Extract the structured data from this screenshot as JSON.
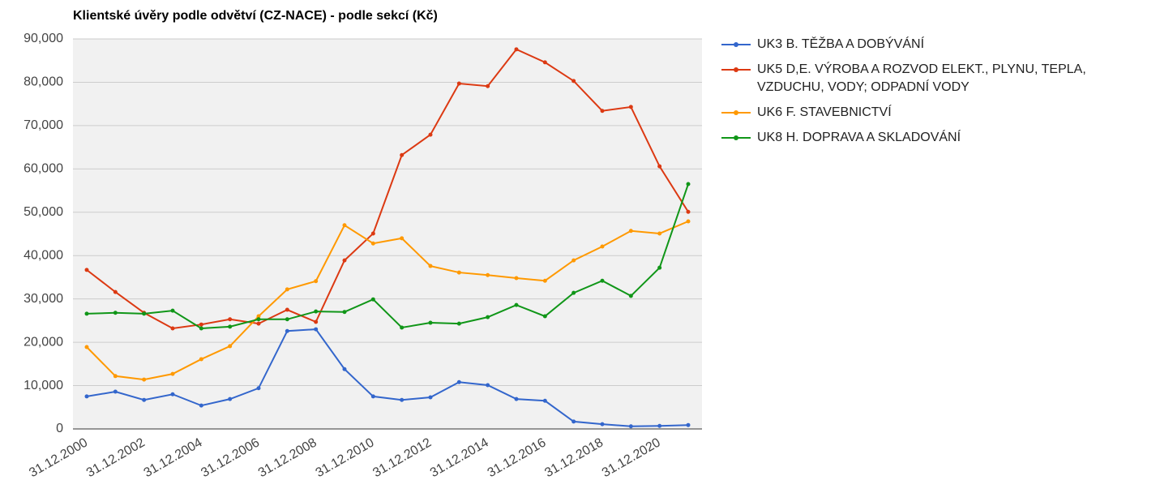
{
  "chart_data": {
    "type": "line",
    "title": "Klientské úvěry podle odvětví (CZ-NACE) - podle sekcí (Kč)",
    "categories": [
      "31.12.2000",
      null,
      "31.12.2002",
      null,
      "31.12.2004",
      null,
      "31.12.2006",
      null,
      "31.12.2008",
      null,
      "31.12.2010",
      null,
      "31.12.2012",
      null,
      "31.12.2014",
      null,
      "31.12.2016",
      null,
      "31.12.2018",
      null,
      "31.12.2020",
      null
    ],
    "series": [
      {
        "name": "UK3 B. TĚŽBA A DOBÝVÁNÍ",
        "color": "#3366cc",
        "values": [
          7500,
          8600,
          6700,
          8000,
          5400,
          6900,
          9400,
          22600,
          23000,
          13800,
          7500,
          6700,
          7300,
          10800,
          10100,
          6900,
          6500,
          1700,
          1100,
          600,
          700,
          900
        ]
      },
      {
        "name": "UK5 D,E. VÝROBA A ROZVOD ELEKT., PLYNU, TEPLA, VZDUCHU, VODY; ODPADNÍ VODY",
        "color": "#dc3912",
        "values": [
          36700,
          31600,
          26800,
          23200,
          24100,
          25300,
          24300,
          27500,
          24700,
          38900,
          45100,
          63200,
          67900,
          79700,
          79100,
          87600,
          84600,
          80300,
          73400,
          74300,
          60600,
          50100
        ]
      },
      {
        "name": "UK6 F. STAVEBNICTVÍ",
        "color": "#ff9900",
        "values": [
          18900,
          12200,
          11400,
          12700,
          16100,
          19100,
          26000,
          32200,
          34100,
          47000,
          42800,
          44000,
          37600,
          36100,
          35500,
          34800,
          34200,
          38900,
          42100,
          45700,
          45100,
          47900
        ]
      },
      {
        "name": "UK8 H. DOPRAVA A SKLADOVÁNÍ",
        "color": "#109618",
        "values": [
          26600,
          26800,
          26600,
          27300,
          23200,
          23600,
          25300,
          25300,
          27100,
          27000,
          29900,
          23400,
          24500,
          24300,
          25800,
          28600,
          26000,
          31400,
          34200,
          30700,
          37200,
          56500
        ]
      }
    ],
    "ylim": [
      0,
      90000
    ],
    "yticks": [
      0,
      {
        "value": 10000,
        "label": "10,000"
      },
      {
        "value": 20000,
        "label": "20,000"
      },
      {
        "value": 30000,
        "label": "30,000"
      },
      {
        "value": 40000,
        "label": "40,000"
      },
      {
        "value": 50000,
        "label": "50,000"
      },
      {
        "value": 60000,
        "label": "60,000"
      },
      {
        "value": 70000,
        "label": "70,000"
      },
      {
        "value": 80000,
        "label": "80,000"
      },
      {
        "value": 90000,
        "label": "90,000"
      }
    ],
    "grid": true,
    "legend": "right"
  }
}
